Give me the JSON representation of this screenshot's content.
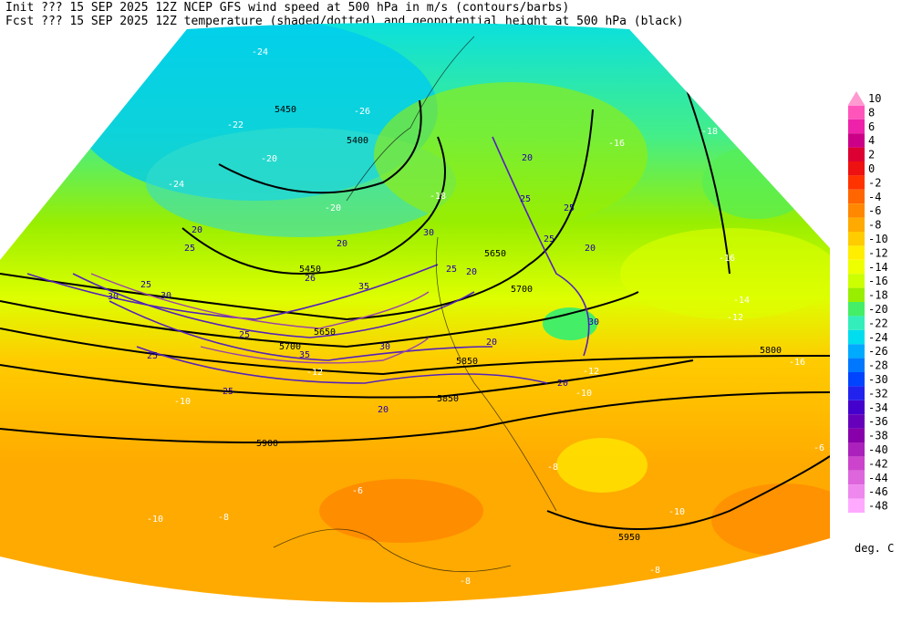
{
  "header": {
    "line1": "Init  ??? 15 SEP 2025 12Z  NCEP GFS wind speed at 500 hPa in m/s (contours/barbs)",
    "line2": "Fcst ??? 15 SEP 2025 12Z  temperature (shaded/dotted) and geopotential height at 500 hPa (black)"
  },
  "colorbar": {
    "unit": "deg. C",
    "levels": [
      10,
      8,
      6,
      4,
      2,
      0,
      -2,
      -4,
      -6,
      -8,
      -10,
      -12,
      -14,
      -16,
      -18,
      -20,
      -22,
      -24,
      -26,
      -28,
      -30,
      -32,
      -34,
      -36,
      -38,
      -40,
      -42,
      -44,
      -46,
      -48
    ],
    "colors": [
      "#ff9ad0",
      "#ff55bb",
      "#ee22aa",
      "#cc0088",
      "#dd0033",
      "#ee1111",
      "#ff3300",
      "#ff6600",
      "#ff8800",
      "#ffaa00",
      "#ffcc00",
      "#ffee00",
      "#eeff00",
      "#ccff00",
      "#99ee00",
      "#44ee66",
      "#33eebb",
      "#00ddee",
      "#00aaff",
      "#0077ff",
      "#0044ff",
      "#2222ee",
      "#4400cc",
      "#6600bb",
      "#8800aa",
      "#aa22bb",
      "#cc44cc",
      "#dd66dd",
      "#ee88ee",
      "#ffaaff"
    ]
  },
  "map": {
    "height_labels": [
      5450,
      5400,
      5450,
      5650,
      5700,
      5650,
      5700,
      5800,
      5850,
      5850,
      5900,
      5950
    ],
    "temperature_labels": [
      -24,
      -22,
      -20,
      -26,
      -24,
      -20,
      -18,
      -16,
      -18,
      -16,
      -14,
      -12,
      -16,
      -12,
      -12,
      -10,
      -10,
      -8,
      -6,
      -8,
      -10,
      -10,
      -8,
      -8,
      -6
    ],
    "wind_labels": [
      20,
      25,
      20,
      30,
      26,
      25,
      20,
      30,
      25,
      30,
      35,
      25,
      30,
      35,
      25,
      25,
      20,
      20,
      25,
      25,
      25,
      20,
      20,
      20,
      30
    ]
  }
}
